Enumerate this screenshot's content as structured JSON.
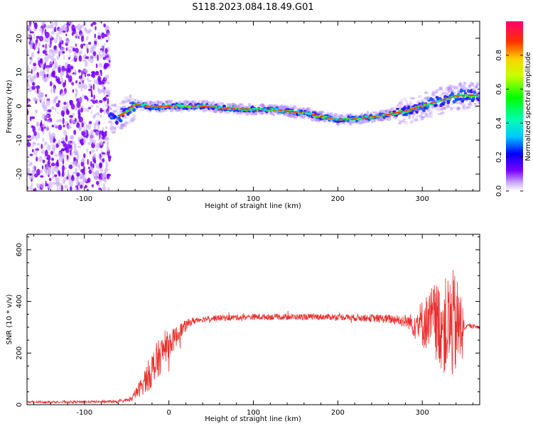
{
  "title": "S118.2023.084.18.49.G01",
  "colors": {
    "signal": "#e8302e",
    "scatter": "#7a00ff",
    "frame": "#000000"
  },
  "chart_data": [
    {
      "type": "heatmap",
      "name": "spectrogram",
      "xlabel": "Height of straight line (km)",
      "ylabel": "Frequency (Hz)",
      "xlim": [
        -168,
        368
      ],
      "ylim": [
        -25,
        25
      ],
      "xticks": [
        "-100",
        "0",
        "100",
        "200",
        "300"
      ],
      "yticks": [
        "-20",
        "-10",
        "0",
        "10",
        "20"
      ],
      "trend": {
        "x": [
          -65,
          -55,
          -45,
          -40,
          -30,
          -20,
          -10,
          0,
          20,
          40,
          60,
          80,
          100,
          120,
          140,
          160,
          180,
          200,
          220,
          240,
          260,
          280,
          300,
          320,
          340,
          360
        ],
        "y": [
          -3.5,
          -2.5,
          -0.5,
          0.5,
          0.2,
          -0.3,
          -0.2,
          0,
          0,
          0,
          -0.5,
          -0.8,
          -1.0,
          -1.0,
          -1.5,
          -2.0,
          -3.0,
          -4.0,
          -3.8,
          -3.2,
          -2.5,
          -1.5,
          0,
          1.5,
          3.0,
          3.2
        ]
      },
      "grid": false
    },
    {
      "type": "line",
      "name": "snr",
      "xlabel": "Height of straight line (km)",
      "ylabel": "SNR (10 * v/v)",
      "xlim": [
        -168,
        368
      ],
      "ylim": [
        0,
        660
      ],
      "xticks": [
        "-100",
        "0",
        "100",
        "200",
        "300"
      ],
      "yticks": [
        "0",
        "200",
        "400",
        "600"
      ],
      "envelope": {
        "x": [
          -168,
          -60,
          -45,
          -35,
          -25,
          -15,
          -5,
          5,
          15,
          25,
          35,
          50,
          100,
          150,
          200,
          240,
          270,
          285,
          295,
          305,
          315,
          325,
          335,
          345,
          350,
          355,
          368
        ],
        "center": [
          10,
          12,
          20,
          60,
          110,
          160,
          220,
          250,
          290,
          320,
          330,
          335,
          340,
          340,
          340,
          335,
          330,
          320,
          310,
          320,
          330,
          300,
          310,
          300,
          300,
          305,
          300
        ],
        "noise": [
          4,
          5,
          8,
          30,
          60,
          80,
          60,
          45,
          30,
          15,
          12,
          12,
          12,
          12,
          12,
          15,
          20,
          30,
          80,
          110,
          150,
          180,
          220,
          170,
          10,
          8,
          8
        ]
      },
      "grid": false
    }
  ],
  "colorbar": {
    "label": "Normalized spectral amplitude",
    "ticks": [
      "0.0",
      "0.2",
      "0.4",
      "0.6",
      "0.8"
    ],
    "range": [
      0,
      1
    ]
  }
}
